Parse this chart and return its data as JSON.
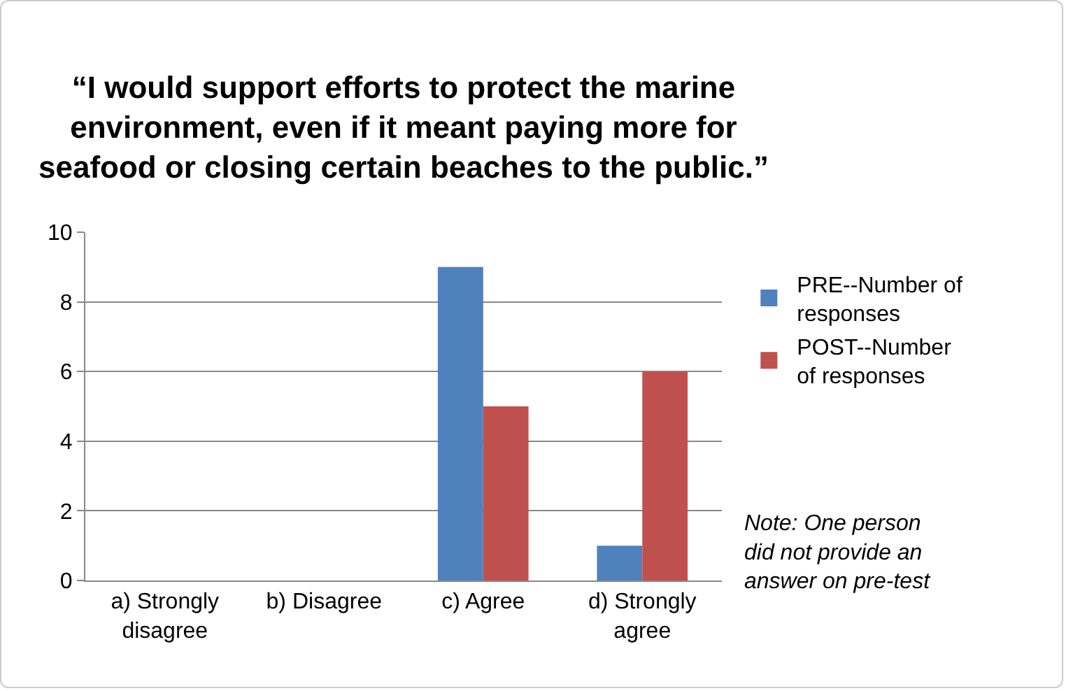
{
  "chart_data": {
    "type": "bar",
    "title": "“I would support efforts to protect the marine environment, even if it meant paying more for seafood or closing certain beaches to the public.”",
    "categories": [
      "a) Strongly disagree",
      "b) Disagree",
      "c) Agree",
      "d) Strongly agree"
    ],
    "series": [
      {
        "name": "PRE--Number of responses",
        "color": "#4f81bd",
        "values": [
          0,
          0,
          9,
          1
        ]
      },
      {
        "name": "POST--Number of responses",
        "color": "#c0504d",
        "values": [
          0,
          0,
          5,
          6
        ]
      }
    ],
    "ylim": [
      0,
      10
    ],
    "yticks": [
      0,
      2,
      4,
      6,
      8,
      10
    ],
    "grid": "y",
    "legend": "right",
    "annotations": [
      "Note: One person did not provide an answer on pre-test"
    ]
  }
}
